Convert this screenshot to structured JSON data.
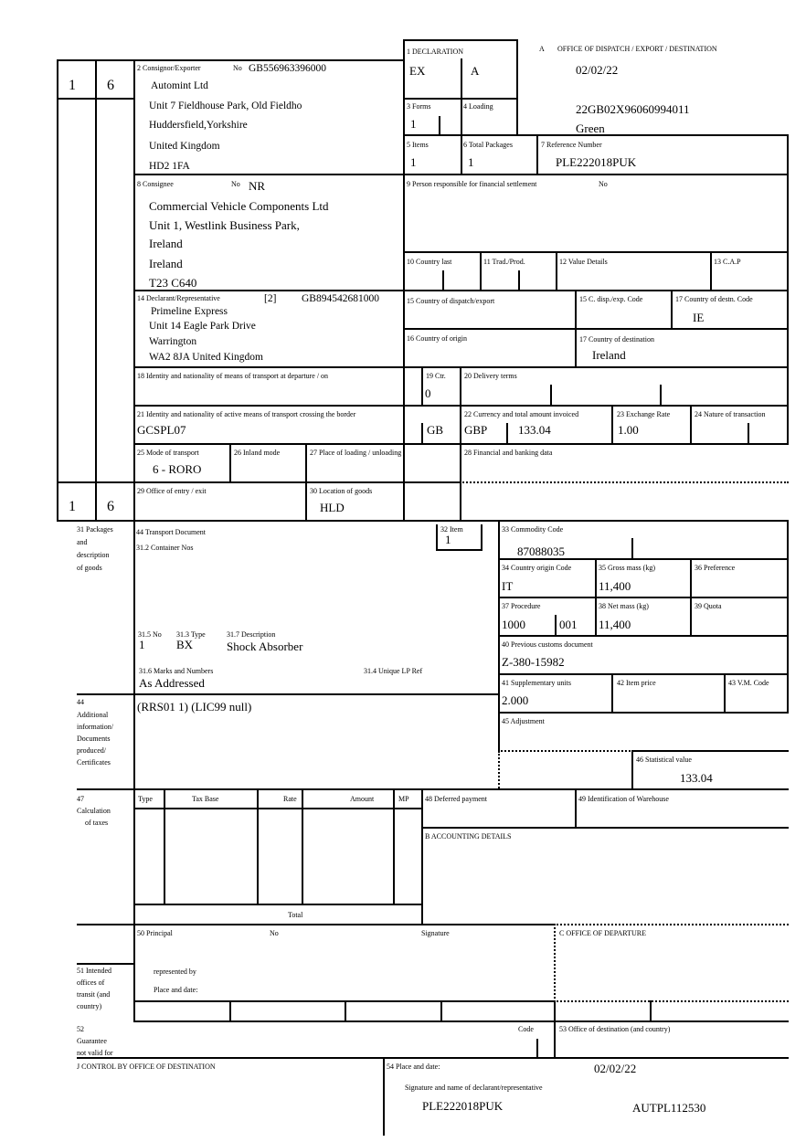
{
  "header": {
    "a": "A",
    "office": "OFFICE OF DISPATCH / EXPORT / DESTINATION",
    "date": "02/02/22",
    "mrn": "22GB02X96060994011",
    "route": "Green"
  },
  "side": {
    "top_left": "1",
    "top_right": "6",
    "bottom_left": "1",
    "bottom_right": "6"
  },
  "b1": {
    "label": "1 DECLARATION",
    "v1": "EX",
    "v2": "A"
  },
  "b3": {
    "label": "3 Forms",
    "value": "1"
  },
  "b4": {
    "label": "4 Loading"
  },
  "b5": {
    "label": "5 Items",
    "value": "1"
  },
  "b6": {
    "label": "6 Total Packages",
    "value": "1"
  },
  "b7": {
    "label": "7 Reference Number",
    "value": "PLE222018PUK"
  },
  "b2": {
    "label": "2 Consignor/Exporter",
    "no_label": "No",
    "no": "GB556963396000",
    "lines": [
      "Automint Ltd",
      "Unit 7 Fieldhouse Park, Old Fieldho",
      "Huddersfield,Yorkshire",
      "United Kingdom",
      "HD2 1FA"
    ]
  },
  "b8": {
    "label": "8 Consignee",
    "no_label": "No",
    "no": "NR",
    "lines": [
      "Commercial Vehicle Components Ltd",
      "Unit 1, Westlink Business Park,",
      "Ireland",
      "Ireland",
      "T23 C640"
    ]
  },
  "b9": {
    "label": "9 Person responsible for financial settlement",
    "no_label": "No"
  },
  "b10": {
    "label": "10 Country last"
  },
  "b11": {
    "label": "11 Trad./Prod."
  },
  "b12": {
    "label": "12 Value Details"
  },
  "b13": {
    "label": "13 C.A.P"
  },
  "b14": {
    "label": "14 Declarant/Representative",
    "code": "[2]",
    "no": "GB894542681000",
    "lines": [
      "Primeline Express",
      "Unit 14 Eagle Park Drive",
      "Warrington",
      "WA2 8JA United Kingdom"
    ]
  },
  "b15": {
    "label": "15 Country of dispatch/export"
  },
  "b15a": {
    "label": "15 C. disp./exp. Code"
  },
  "b17a": {
    "label": "17 Country of destn. Code",
    "value": "IE"
  },
  "b16": {
    "label": "16 Country of origin"
  },
  "b17": {
    "label": "17 Country of destination",
    "value": "Ireland"
  },
  "b18": {
    "label": "18 Identity and nationality of means of transport at departure / on"
  },
  "b19": {
    "label": "19 Ctr.",
    "value": "0"
  },
  "b20": {
    "label": "20 Delivery terms"
  },
  "b21": {
    "label": "21 Identity and nationality of active means of transport crossing the border",
    "value": "GCSPL07",
    "country": "GB"
  },
  "b22": {
    "label": "22 Currency and total amount invoiced",
    "currency": "GBP",
    "amount": "133.04"
  },
  "b23": {
    "label": "23 Exchange Rate",
    "value": "1.00"
  },
  "b24": {
    "label": "24 Nature of transaction"
  },
  "b25": {
    "label": "25 Mode of transport",
    "value": "6 - RORO"
  },
  "b26": {
    "label": "26 Inland mode"
  },
  "b27": {
    "label": "27 Place of loading / unloading"
  },
  "b28": {
    "label": "28 Financial and banking data"
  },
  "b29": {
    "label": "29 Office of entry / exit"
  },
  "b30": {
    "label": "30 Location of goods",
    "value": "HLD"
  },
  "b31": {
    "side": [
      "31 Packages",
      "and",
      "description",
      "of goods"
    ],
    "transport_doc": "44 Transport Document",
    "container": "31.2 Container Nos",
    "no_label": "31.5 No",
    "no": "1",
    "type_label": "31.3 Type",
    "type": "BX",
    "desc_label": "31.7 Description",
    "desc": "Shock Absorber",
    "marks_label": "31.6 Marks and Numbers",
    "marks": "As Addressed",
    "lp_label": "31.4 Unique LP Ref"
  },
  "b32": {
    "label": "32 Item",
    "value": "1"
  },
  "b33": {
    "label": "33 Commodity Code",
    "value": "87088035"
  },
  "b34": {
    "label": "34 Country origin Code",
    "value": "IT"
  },
  "b35": {
    "label": "35 Gross mass (kg)",
    "value": "11,400"
  },
  "b36": {
    "label": "36 Preference"
  },
  "b37": {
    "label": "37 Procedure",
    "v1": "1000",
    "v2": "001"
  },
  "b38": {
    "label": "38 Net mass (kg)",
    "value": "11,400"
  },
  "b39": {
    "label": "39 Quota"
  },
  "b40": {
    "label": "40 Previous customs document",
    "value": "Z-380-15982"
  },
  "b41": {
    "label": "41 Supplementary units",
    "value": "2.000"
  },
  "b42": {
    "label": "42 Item price"
  },
  "b43": {
    "label": "43 V.M. Code"
  },
  "b44": {
    "side": [
      "44",
      "Additional",
      "information/",
      "Documents",
      "produced/",
      "Certificates"
    ],
    "value": "(RRS01 1) (LIC99 null)"
  },
  "b45": {
    "label": "45 Adjustment"
  },
  "b46": {
    "label": "46 Statistical value",
    "value": "133.04"
  },
  "b47": {
    "side": [
      "47",
      "Calculation",
      "of taxes"
    ],
    "cols": [
      "Type",
      "Tax Base",
      "Rate",
      "Amount",
      "MP"
    ],
    "total": "Total"
  },
  "b48": {
    "label": "48 Deferred payment"
  },
  "b49": {
    "label": "49 Identification of Warehouse"
  },
  "bB": {
    "label": "B ACCOUNTING DETAILS"
  },
  "b50": {
    "label": "50 Principal",
    "no_label": "No",
    "signature": "Signature",
    "represented": "represented by",
    "place": "Place and date:"
  },
  "bC": {
    "label": "C OFFICE OF DEPARTURE"
  },
  "b51": {
    "side": [
      "51 Intended",
      "offices of",
      "transit (and",
      "country)"
    ]
  },
  "b52": {
    "side": [
      "52",
      "Guarantee",
      "not valid for"
    ],
    "code": "Code"
  },
  "b53": {
    "label": "53 Office of destination (and country)"
  },
  "bJ": {
    "label": "J CONTROL BY OFFICE OF DESTINATION"
  },
  "b54": {
    "label": "54 Place and date:",
    "date": "02/02/22",
    "sig_label": "Signature and name of declarant/representative",
    "ref": "PLE222018PUK",
    "id": "AUTPL112530"
  }
}
